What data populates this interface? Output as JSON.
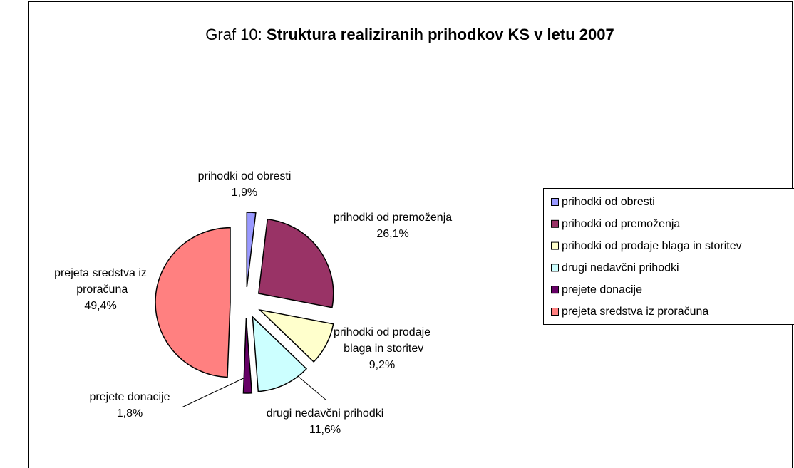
{
  "chart_data": {
    "type": "pie",
    "title": [
      "Graf 10:",
      "Struktura realiziranih prihodkov KS v letu 2007"
    ],
    "categories": [
      "prihodki od obresti",
      "prihodki od premoženja",
      "prihodki od prodaje blaga in storitev",
      "drugi nedavčni prihodki",
      "prejete donacije",
      "prejeta sredstva iz proračuna"
    ],
    "values": [
      1.9,
      26.1,
      9.2,
      11.6,
      1.8,
      49.4
    ],
    "value_labels": [
      "1,9%",
      "26,1%",
      "9,2%",
      "11,6%",
      "1,8%",
      "49,4%"
    ],
    "colors": [
      "#9999ff",
      "#993366",
      "#ffffcc",
      "#ccffff",
      "#660066",
      "#ff8080"
    ],
    "legend": "right"
  }
}
